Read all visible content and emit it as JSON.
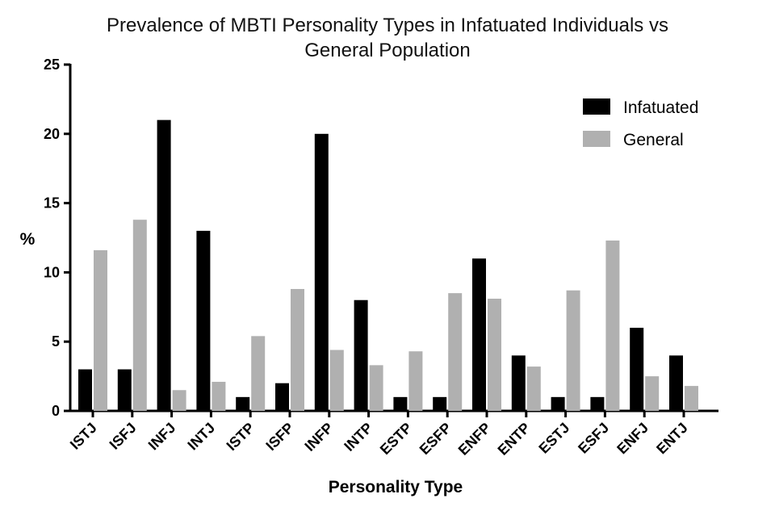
{
  "chart_data": {
    "type": "bar",
    "title_lines": [
      "Prevalence of MBTI Personality Types in Infatuated Individuals vs",
      "General Population"
    ],
    "xlabel": "Personality Type",
    "ylabel": "%",
    "ylim": [
      0,
      25
    ],
    "yticks": [
      "0",
      "5",
      "10",
      "15",
      "20",
      "25"
    ],
    "categories": [
      "ISTJ",
      "ISFJ",
      "INFJ",
      "INTJ",
      "ISTP",
      "ISFP",
      "INFP",
      "INTP",
      "ESTP",
      "ESFP",
      "ENFP",
      "ENTP",
      "ESTJ",
      "ESFJ",
      "ENFJ",
      "ENTJ"
    ],
    "series": [
      {
        "name": "Infatuated",
        "color": "#000000",
        "values": [
          3,
          3,
          21,
          13,
          1,
          2,
          20,
          8,
          1,
          1,
          11,
          4,
          1,
          1,
          6,
          4
        ]
      },
      {
        "name": "General",
        "color": "#b0b0b0",
        "values": [
          11.6,
          13.8,
          1.5,
          2.1,
          5.4,
          8.8,
          4.4,
          3.3,
          4.3,
          8.5,
          8.1,
          3.2,
          8.7,
          12.3,
          2.5,
          1.8
        ]
      }
    ],
    "legend_position": "top-right",
    "grid": false
  }
}
